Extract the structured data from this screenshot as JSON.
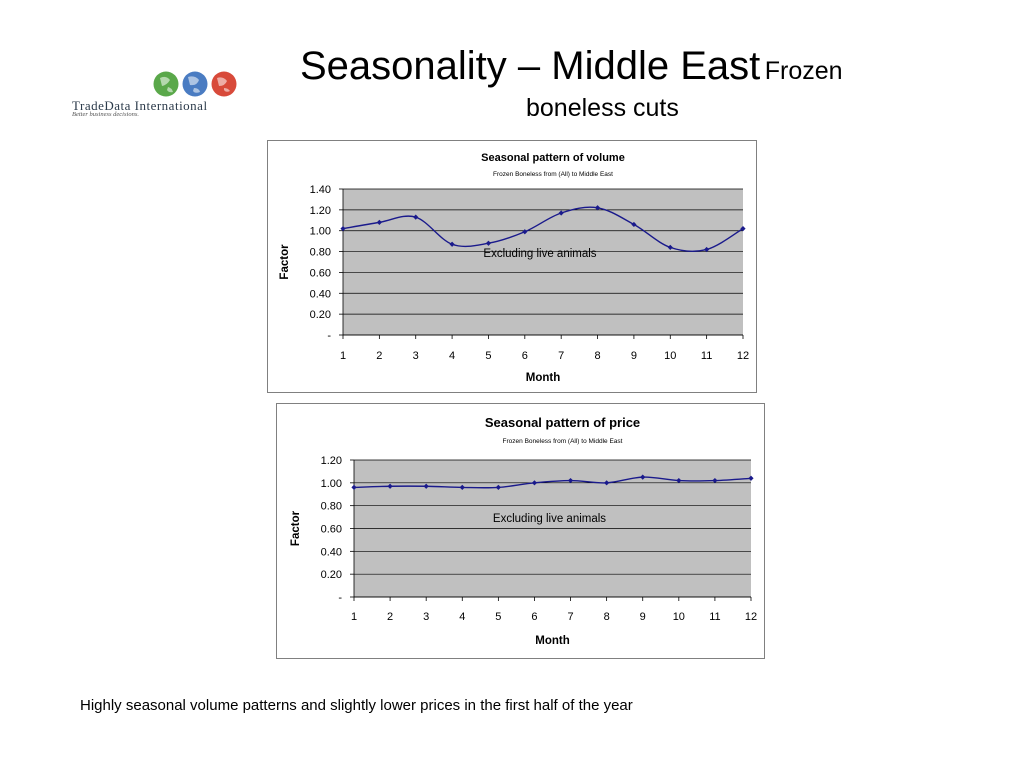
{
  "logo": {
    "name": "TradeData International",
    "tagline": "Better business decisions.",
    "globe_colors": [
      "#5aa84a",
      "#4a7cc2",
      "#d84a3a"
    ]
  },
  "slide": {
    "title_main": "Seasonality – Middle East",
    "title_sub_line1": "Frozen",
    "title_sub_line2": "boneless cuts",
    "caption": "Highly seasonal volume patterns and slightly lower prices in the first half of the year"
  },
  "colors": {
    "plot_bg": "#c0c0c0",
    "series": "#1a1a8c",
    "grid": "#000000"
  },
  "chart_data": [
    {
      "type": "line",
      "title": "Seasonal pattern of volume",
      "subtitle": "Frozen Boneless from (All) to Middle East",
      "xlabel": "Month",
      "ylabel": "Factor",
      "annotation": "Excluding live animals",
      "x": [
        1,
        2,
        3,
        4,
        5,
        6,
        7,
        8,
        9,
        10,
        11,
        12
      ],
      "values": [
        1.02,
        1.08,
        1.13,
        0.87,
        0.88,
        0.99,
        1.17,
        1.22,
        1.06,
        0.84,
        0.82,
        1.02
      ],
      "ylim": [
        0,
        1.4
      ],
      "yticks": [
        0,
        0.2,
        0.4,
        0.6,
        0.8,
        1.0,
        1.2,
        1.4
      ],
      "yticklabels": [
        "-",
        "0.20",
        "0.40",
        "0.60",
        "0.80",
        "1.00",
        "1.20",
        "1.40"
      ],
      "grid": true,
      "legend": "none"
    },
    {
      "type": "line",
      "title": "Seasonal pattern of price",
      "subtitle": "Frozen Boneless from (All) to Middle East",
      "xlabel": "Month",
      "ylabel": "Factor",
      "annotation": "Excluding live animals",
      "x": [
        1,
        2,
        3,
        4,
        5,
        6,
        7,
        8,
        9,
        10,
        11,
        12
      ],
      "values": [
        0.96,
        0.97,
        0.97,
        0.96,
        0.96,
        1.0,
        1.02,
        1.0,
        1.05,
        1.02,
        1.02,
        1.04
      ],
      "ylim": [
        0,
        1.2
      ],
      "yticks": [
        0,
        0.2,
        0.4,
        0.6,
        0.8,
        1.0,
        1.2
      ],
      "yticklabels": [
        "-",
        "0.20",
        "0.40",
        "0.60",
        "0.80",
        "1.00",
        "1.20"
      ],
      "grid": true,
      "legend": "none"
    }
  ]
}
